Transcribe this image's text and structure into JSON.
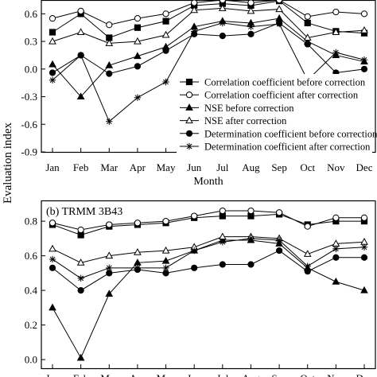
{
  "figure": {
    "shared_ylabel": "Evaluation index"
  },
  "chart_data": [
    {
      "type": "line",
      "panel_label": "",
      "xlabel": "Month",
      "ylabel": "",
      "categories": [
        "Jan",
        "Feb",
        "Mar",
        "Apr",
        "May",
        "Jun",
        "Jul",
        "Aug",
        "Sep",
        "Oct",
        "Nov",
        "Dec"
      ],
      "ylim": [
        -0.9,
        0.75
      ],
      "yticks": [
        -0.9,
        -0.6,
        -0.3,
        0.0,
        0.3,
        0.6
      ],
      "ytick_labels": [
        "-0.9",
        "-0.6",
        "-0.3",
        "0.0",
        "0.3",
        "0.6"
      ],
      "grid": false,
      "legend_position": "bottom-right",
      "series": [
        {
          "name": "Correlation coefficient before correction",
          "marker": "square-filled",
          "values": [
            0.4,
            0.6,
            0.34,
            0.45,
            0.52,
            0.69,
            0.71,
            0.69,
            0.74,
            0.5,
            0.41,
            0.39
          ]
        },
        {
          "name": "Correlation coefficient after correction",
          "marker": "circle-open",
          "values": [
            0.55,
            0.63,
            0.48,
            0.55,
            0.6,
            0.72,
            0.75,
            0.72,
            0.75,
            0.57,
            0.62,
            0.6
          ]
        },
        {
          "name": "NSE before correction",
          "marker": "triangle-filled",
          "values": [
            0.05,
            -0.3,
            0.04,
            0.14,
            0.24,
            0.46,
            0.52,
            0.5,
            0.55,
            0.3,
            0.15,
            0.08
          ]
        },
        {
          "name": "NSE after correction",
          "marker": "triangle-open",
          "values": [
            0.3,
            0.4,
            0.28,
            0.3,
            0.37,
            0.64,
            0.66,
            0.63,
            0.65,
            0.34,
            0.4,
            0.42
          ]
        },
        {
          "name": "Determination coefficient before correction",
          "marker": "circle-filled",
          "values": [
            -0.04,
            0.15,
            -0.05,
            0.03,
            0.2,
            0.38,
            0.36,
            0.38,
            0.5,
            0.27,
            -0.04,
            0.0
          ]
        },
        {
          "name": "Determination coefficient after correction",
          "marker": "star",
          "values": [
            -0.12,
            0.15,
            -0.57,
            -0.31,
            -0.14,
            0.41,
            0.5,
            0.46,
            0.49,
            -0.12,
            0.18,
            0.1
          ]
        }
      ]
    },
    {
      "type": "line",
      "panel_label": "(b) TRMM 3B43",
      "xlabel": "",
      "ylabel": "",
      "categories": [
        "Jan",
        "Feb",
        "Mar",
        "Apr",
        "May",
        "Jun",
        "Jul",
        "Aug",
        "Sep",
        "Oct",
        "Nov",
        "Dec"
      ],
      "ylim": [
        -0.05,
        0.92
      ],
      "yticks": [
        0.0,
        0.2,
        0.4,
        0.6,
        0.8
      ],
      "ytick_labels": [
        "0.0",
        "0.2",
        "0.4",
        "0.6",
        "0.8"
      ],
      "grid": false,
      "series": [
        {
          "name": "Correlation coefficient before correction",
          "marker": "square-filled",
          "values": [
            0.78,
            0.72,
            0.77,
            0.78,
            0.79,
            0.82,
            0.83,
            0.83,
            0.84,
            0.78,
            0.8,
            0.8
          ]
        },
        {
          "name": "Correlation coefficient after correction",
          "marker": "circle-open",
          "values": [
            0.79,
            0.75,
            0.78,
            0.79,
            0.8,
            0.83,
            0.86,
            0.86,
            0.85,
            0.77,
            0.82,
            0.82
          ]
        },
        {
          "name": "NSE before correction",
          "marker": "triangle-filled",
          "values": [
            0.3,
            0.01,
            0.38,
            0.56,
            0.57,
            0.63,
            0.69,
            0.69,
            0.67,
            0.53,
            0.45,
            0.4
          ]
        },
        {
          "name": "NSE after correction",
          "marker": "triangle-open",
          "values": [
            0.64,
            0.56,
            0.6,
            0.62,
            0.63,
            0.65,
            0.71,
            0.71,
            0.7,
            0.61,
            0.67,
            0.68
          ]
        },
        {
          "name": "Determination coefficient before correction",
          "marker": "circle-filled",
          "values": [
            0.53,
            0.4,
            0.5,
            0.52,
            0.5,
            0.53,
            0.55,
            0.55,
            0.63,
            0.51,
            0.59,
            0.59
          ]
        },
        {
          "name": "Determination coefficient after correction",
          "marker": "star",
          "values": [
            0.58,
            0.47,
            0.53,
            0.53,
            0.53,
            0.63,
            0.68,
            0.7,
            0.69,
            0.54,
            0.64,
            0.65
          ]
        }
      ]
    }
  ]
}
